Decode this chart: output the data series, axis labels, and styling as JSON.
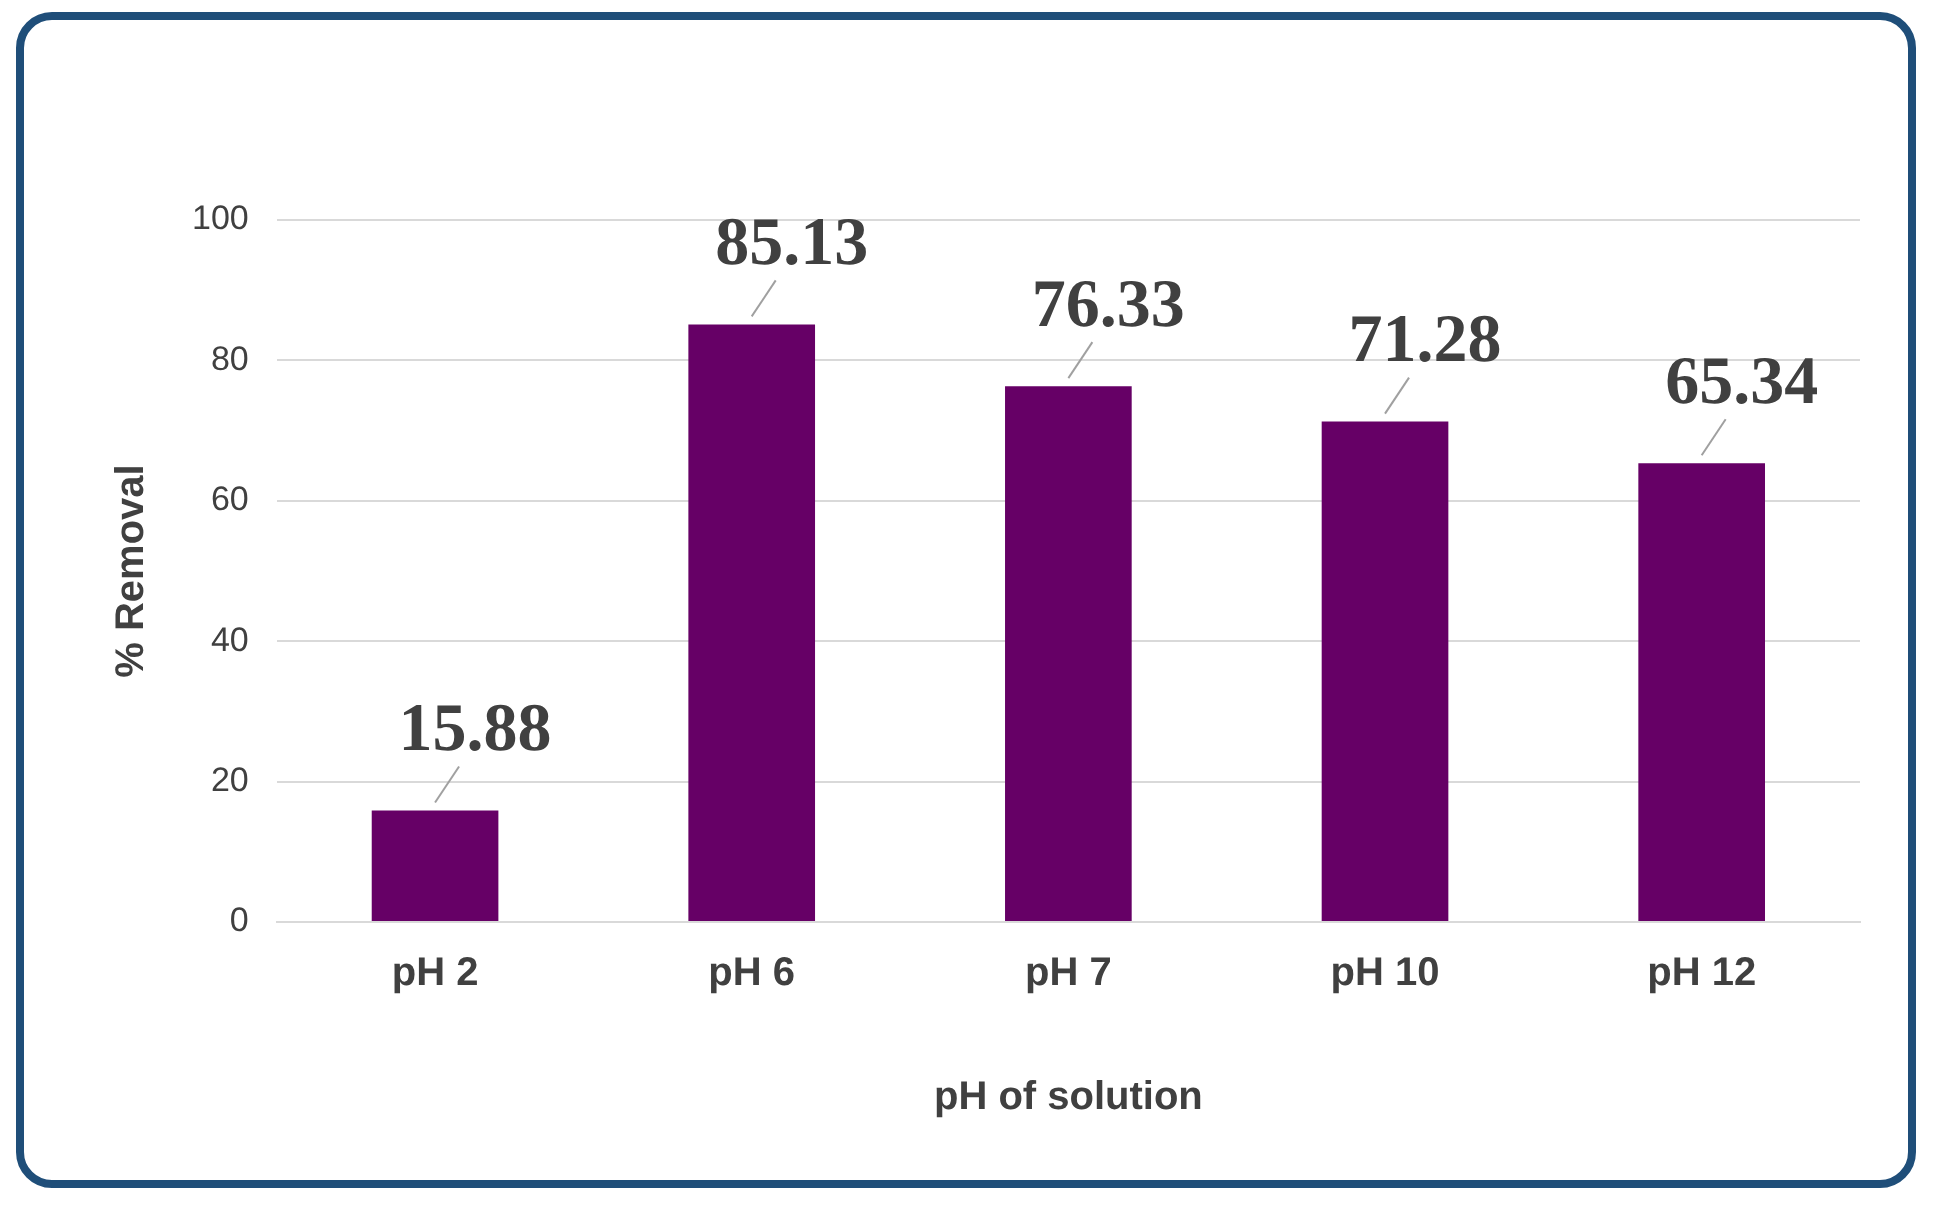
{
  "chart_data": {
    "type": "bar",
    "xlabel": "pH of solution",
    "ylabel": "% Removal",
    "categories": [
      "pH 2",
      "pH 6",
      "pH 7",
      "pH 10",
      "pH 12"
    ],
    "values": [
      15.88,
      85.13,
      76.33,
      71.28,
      65.34
    ],
    "color": "#660066",
    "ylim": [
      0,
      100
    ],
    "yticks": [
      0,
      20,
      40,
      60,
      80,
      100
    ],
    "grid": "y",
    "data_labels": true
  }
}
